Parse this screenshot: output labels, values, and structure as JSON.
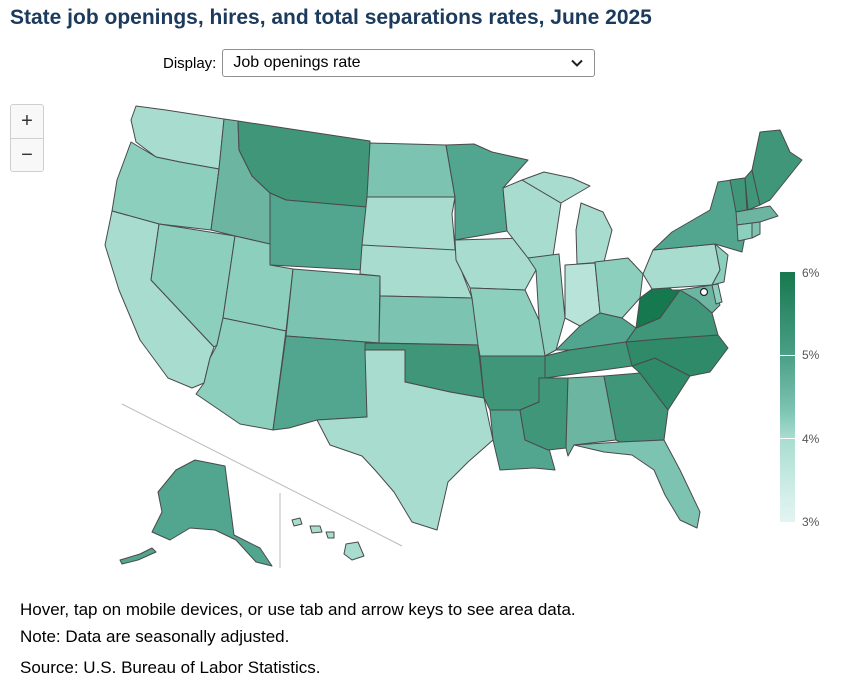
{
  "title": "State job openings, hires, and total separations rates, June 2025",
  "display": {
    "label": "Display:",
    "selected": "Job openings rate"
  },
  "zoom": {
    "in": "+",
    "out": "−"
  },
  "legend": {
    "labels": [
      "6%",
      "5%",
      "4%",
      "3%"
    ],
    "colors": {
      "high": "#16784f",
      "low": "#e2f4f1"
    }
  },
  "footnotes": {
    "hint": "Hover, tap on mobile devices, or use tab and arrow keys to see area data.",
    "note": "Note: Data are seasonally adjusted.",
    "source": "Source: U.S. Bureau of Labor Statistics."
  }
}
